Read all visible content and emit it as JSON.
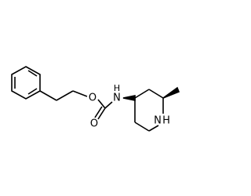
{
  "atoms": {
    "ester_oxygen": "O",
    "carbonyl_oxygen": "O",
    "amide_nitrogen": "N",
    "amide_hydrogen": "H",
    "ring_nitrogen": "N",
    "ring_hydrogen": "H"
  }
}
